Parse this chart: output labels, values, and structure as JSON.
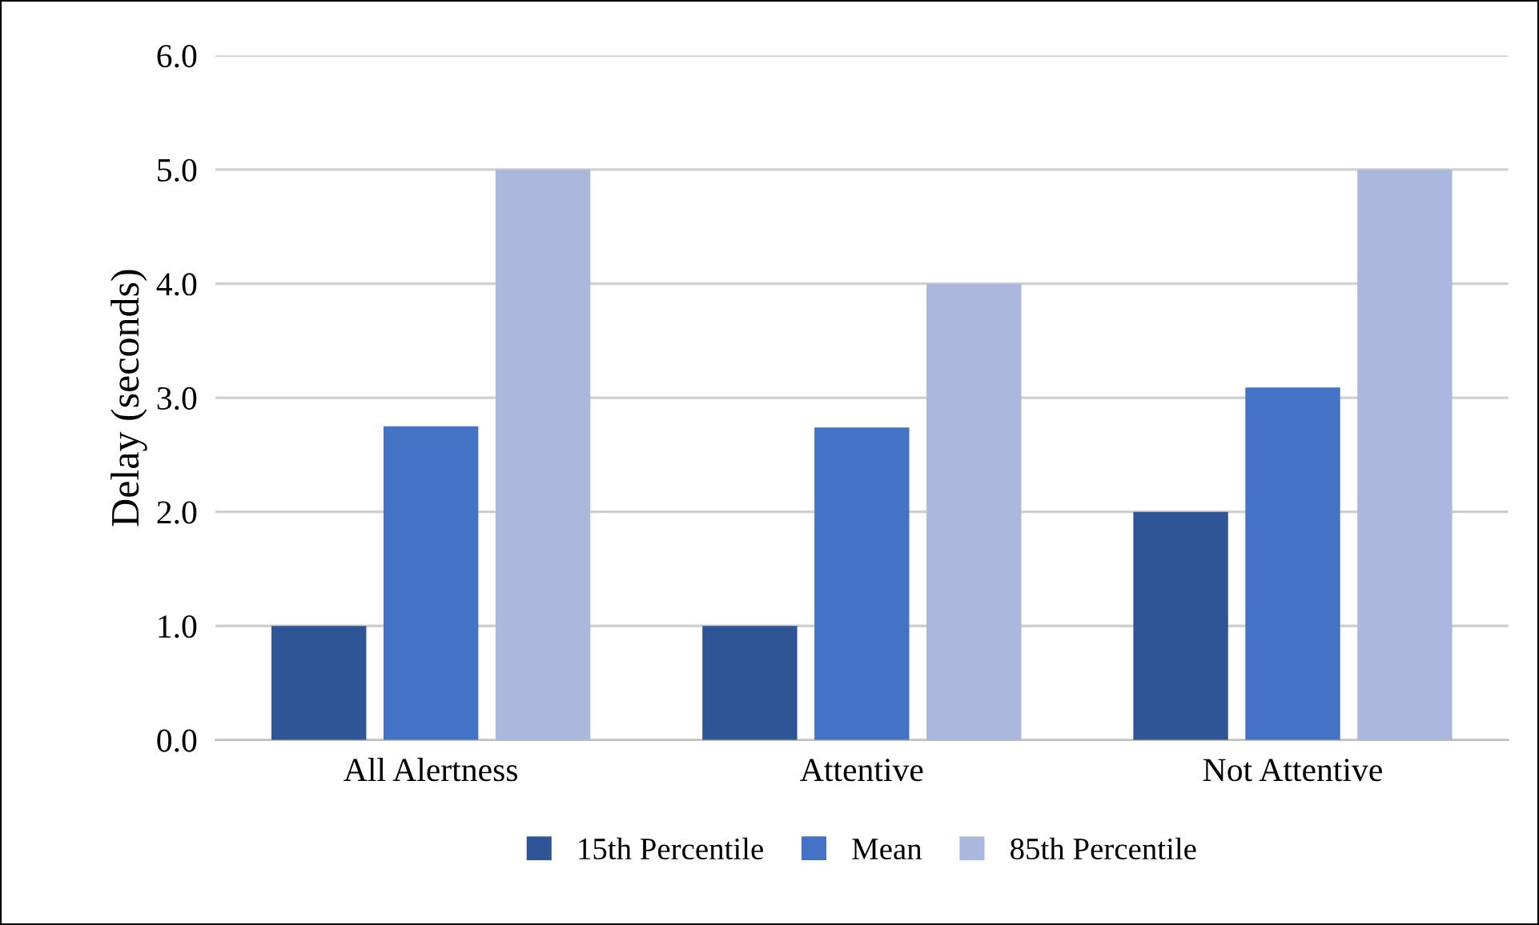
{
  "chart_data": {
    "type": "bar",
    "ylabel": "Delay (seconds)",
    "categories": [
      "All Alertness",
      "Attentive",
      "Not Attentive"
    ],
    "series": [
      {
        "name": "15th Percentile",
        "color": "#2f5597",
        "values": [
          1.0,
          1.0,
          2.0
        ]
      },
      {
        "name": "Mean",
        "color": "#4472c4",
        "values": [
          2.75,
          2.74,
          3.09
        ]
      },
      {
        "name": "85th Percentile",
        "color": "#a9b8dc",
        "values": [
          5.0,
          4.0,
          5.0
        ]
      }
    ],
    "ylim": [
      0,
      6
    ],
    "yticks": [
      {
        "value": 0,
        "label": "0.0"
      },
      {
        "value": 1,
        "label": "1.0"
      },
      {
        "value": 2,
        "label": "2.0"
      },
      {
        "value": 3,
        "label": "3.0"
      },
      {
        "value": 4,
        "label": "4.0"
      },
      {
        "value": 5,
        "label": "5.0"
      },
      {
        "value": 6,
        "label": "6.0"
      }
    ],
    "grid": "y",
    "legend": "bottom"
  }
}
